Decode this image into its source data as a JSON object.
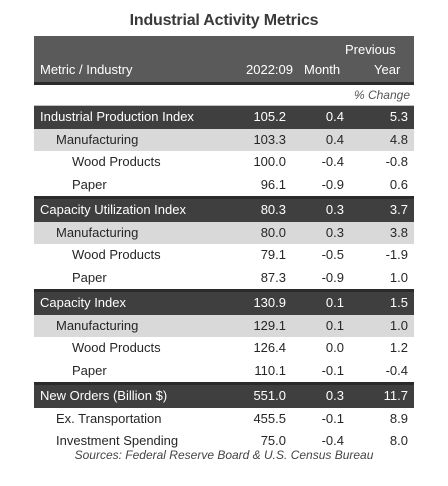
{
  "title": "Industrial Activity Metrics",
  "header": {
    "previous": "Previous",
    "metric": "Metric / Industry",
    "period": "2022:09",
    "month": "Month",
    "year": "Year",
    "pct_change": "% Change"
  },
  "source": "Sources: Federal Reserve Board & U.S. Census Bureau",
  "chart_data": {
    "type": "table",
    "title": "Industrial Activity Metrics",
    "columns": [
      "Metric / Industry",
      "2022:09",
      "Previous Month % Change",
      "Previous Year % Change"
    ],
    "rows": [
      {
        "label": "Industrial Production Index",
        "level": 0,
        "values": [
          "105.2",
          "0.4",
          "5.3"
        ]
      },
      {
        "label": "Manufacturing",
        "level": 1,
        "values": [
          "103.3",
          "0.4",
          "4.8"
        ]
      },
      {
        "label": "Wood Products",
        "level": 2,
        "values": [
          "100.0",
          "-0.4",
          "-0.8"
        ]
      },
      {
        "label": "Paper",
        "level": 2,
        "values": [
          "96.1",
          "-0.9",
          "0.6"
        ]
      },
      {
        "label": "Capacity Utilization Index",
        "level": 0,
        "values": [
          "80.3",
          "0.3",
          "3.7"
        ]
      },
      {
        "label": "Manufacturing",
        "level": 1,
        "values": [
          "80.0",
          "0.3",
          "3.8"
        ]
      },
      {
        "label": "Wood Products",
        "level": 2,
        "values": [
          "79.1",
          "-0.5",
          "-1.9"
        ]
      },
      {
        "label": "Paper",
        "level": 2,
        "values": [
          "87.3",
          "-0.9",
          "1.0"
        ]
      },
      {
        "label": "Capacity Index",
        "level": 0,
        "values": [
          "130.9",
          "0.1",
          "1.5"
        ]
      },
      {
        "label": "Manufacturing",
        "level": 1,
        "values": [
          "129.1",
          "0.1",
          "1.0"
        ]
      },
      {
        "label": "Wood Products",
        "level": 2,
        "values": [
          "126.4",
          "0.0",
          "1.2"
        ]
      },
      {
        "label": "Paper",
        "level": 2,
        "values": [
          "110.1",
          "-0.1",
          "-0.4"
        ]
      },
      {
        "label": "New Orders (Billion $)",
        "level": 0,
        "values": [
          "551.0",
          "0.3",
          "11.7"
        ]
      },
      {
        "label": "Ex. Transportation",
        "level": 1,
        "values": [
          "455.5",
          "-0.1",
          "8.9"
        ]
      },
      {
        "label": "Investment Spending",
        "level": 1,
        "values": [
          "75.0",
          "-0.4",
          "8.0"
        ]
      }
    ]
  }
}
